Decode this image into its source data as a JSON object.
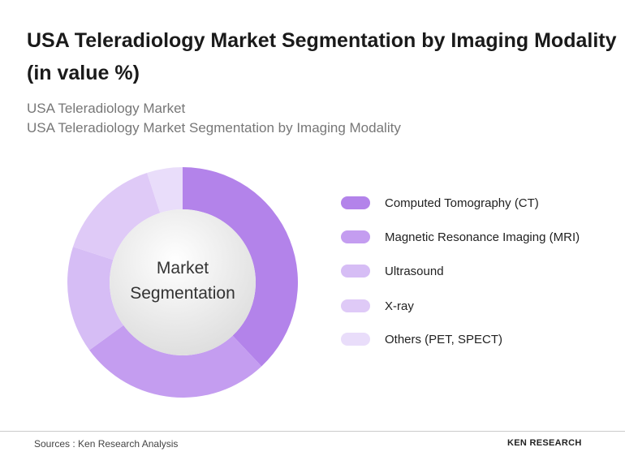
{
  "chart_data": {
    "type": "donut",
    "title": "USA Teleradiology Market Segmentation by Imaging Modality (in value %)",
    "subtitle": [
      "USA Teleradiology Market",
      "USA Teleradiology Market Segmentation by Imaging Modality"
    ],
    "center_label": "Market Segmentation",
    "categories": [
      "Computed Tomography (CT)",
      "Magnetic Resonance Imaging (MRI)",
      "Ultrasound",
      "X-ray",
      "Others (PET, SPECT)"
    ],
    "values": [
      38,
      27,
      15,
      15,
      5
    ],
    "colors": [
      "#b383ea",
      "#c49df0",
      "#d6bdf5",
      "#dfcaf7",
      "#e9ddfa"
    ],
    "source": "Sources : Ken Research Analysis",
    "brand": "KEN RESEARCH"
  }
}
